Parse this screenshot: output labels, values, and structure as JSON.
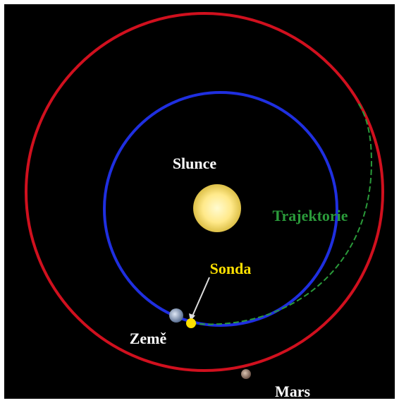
{
  "labels": {
    "sun": "Slunce",
    "trajectory": "Trajektorie",
    "probe": "Sonda",
    "earth": "Země",
    "mars": "Mars"
  }
}
